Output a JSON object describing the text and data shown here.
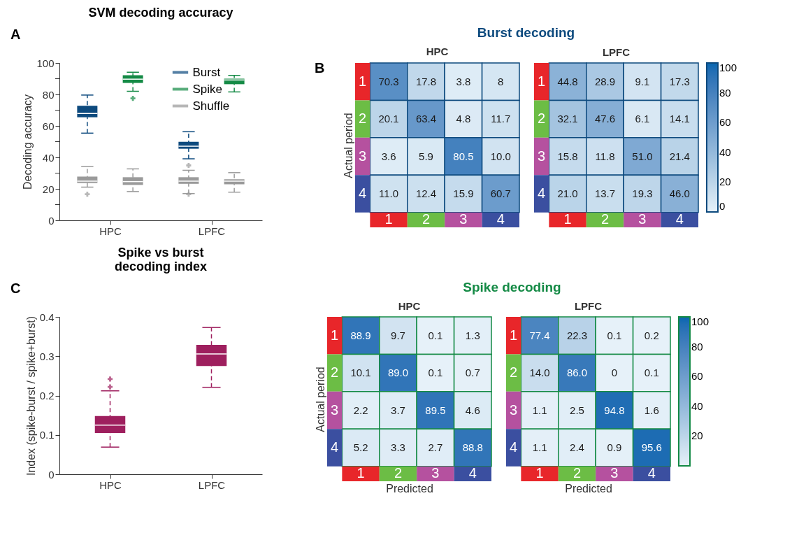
{
  "chart_data": [
    {
      "type": "box",
      "title": "SVM decoding accuracy",
      "ylabel": "Decoding accuracy",
      "categories": [
        "HPC",
        "LPFC"
      ],
      "annotations": [
        "A"
      ],
      "ylim": [
        0,
        100
      ],
      "yticks": [
        0,
        {
          "value": 10,
          "label": null
        },
        20,
        {
          "value": 30,
          "label": null
        },
        40,
        {
          "value": 50,
          "label": null
        },
        60,
        {
          "value": 70,
          "label": null
        },
        80,
        {
          "value": 90,
          "label": null
        },
        100
      ],
      "grid": false,
      "legend": "top right",
      "line_style": "dashed",
      "series": [
        {
          "name": "Burst",
          "color": "#0d4a7e",
          "boxes": [
            {
              "low": 55.4,
              "q1": 65.5,
              "median": 67.9,
              "q3": 72.8,
              "high": 79.6
            },
            {
              "low": 39.1,
              "q1": 45.5,
              "median": 47.1,
              "q3": 49.9,
              "high": 56.3
            }
          ]
        },
        {
          "name": "Spike",
          "color": "#148a45",
          "boxes": [
            {
              "low": 82.0,
              "q1": 87.3,
              "median": 89.7,
              "q3": 92.2,
              "high": 94.1,
              "outliers": [
                77.5
              ]
            },
            {
              "low": 81.6,
              "q1": 86.5,
              "median": 89.2,
              "q3": 90.0,
              "high": 92.1
            }
          ]
        },
        {
          "name": "Shuffle",
          "color": "#9a9a9a",
          "boxes": [
            {
              "low": 21.1,
              "q1": 23.7,
              "median": 24.9,
              "q3": 27.8,
              "high": 34.1,
              "outliers": [
                16.6
              ]
            },
            {
              "low": 17.0,
              "q1": 23.2,
              "median": 24.9,
              "q3": 27.4,
              "high": 31.8,
              "outliers": [
                34.9,
                16.6
              ]
            }
          ]
        },
        {
          "color": "#9a9a9a",
          "boxes": [
            {
              "low": 18.3,
              "q1": 22.5,
              "median": 24.6,
              "q3": 27.4,
              "high": 32.7
            },
            {
              "low": 17.9,
              "q1": 22.9,
              "median": 24.9,
              "q3": 26.1,
              "high": 30.3
            }
          ]
        }
      ]
    },
    {
      "type": "heatmap",
      "title": "Burst decoding",
      "subtitle": "HPC",
      "ylabel": "Actual period",
      "annotations": [
        "B"
      ],
      "color": "#0d4a7e",
      "categories": [
        "1",
        "2",
        "3",
        "4"
      ],
      "y_categories": [
        "1",
        "2",
        "3",
        "4"
      ],
      "colors": [
        "#e8262a",
        "#6cbd45",
        "#b5519f",
        "#3b4fa0"
      ],
      "cells": [
        [
          70.3,
          17.8,
          3.8,
          8
        ],
        [
          20.1,
          63.4,
          4.8,
          11.7
        ],
        [
          3.6,
          5.9,
          80.5,
          10.0
        ],
        [
          11.0,
          12.4,
          15.9,
          60.7
        ]
      ],
      "cell_labels": [
        [
          "70.3",
          "17.8",
          "3.8",
          "8"
        ],
        [
          "20.1",
          "63.4",
          "4.8",
          "11.7"
        ],
        [
          "3.6",
          "5.9",
          "80.5",
          "10.0"
        ],
        [
          "11.0",
          "12.4",
          "15.9",
          "60.7"
        ]
      ]
    },
    {
      "type": "heatmap",
      "subtitle": "LPFC",
      "color": "#0d4a7e",
      "categories": [
        "1",
        "2",
        "3",
        "4"
      ],
      "y_categories": [
        "1",
        "2",
        "3",
        "4"
      ],
      "colors": [
        "#e8262a",
        "#6cbd45",
        "#b5519f",
        "#3b4fa0"
      ],
      "cells": [
        [
          44.8,
          28.9,
          9.1,
          17.3
        ],
        [
          32.1,
          47.6,
          6.1,
          14.1
        ],
        [
          15.8,
          11.8,
          51.0,
          21.4
        ],
        [
          21.0,
          13.7,
          19.3,
          46.0
        ]
      ],
      "cell_labels": [
        [
          "44.8",
          "28.9",
          "9.1",
          "17.3"
        ],
        [
          "32.1",
          "47.6",
          "6.1",
          "14.1"
        ],
        [
          "15.8",
          "11.8",
          "51.0",
          "21.4"
        ],
        [
          "21.0",
          "13.7",
          "19.3",
          "46.0"
        ]
      ],
      "clim": [
        0,
        100
      ],
      "cticks": [
        0,
        20,
        40,
        60,
        80,
        100
      ]
    },
    {
      "type": "box",
      "title": "Spike vs burst\ndecoding index",
      "ylabel": "Index (spike-burst / spike+burst)",
      "categories": [
        "HPC",
        "LPFC"
      ],
      "annotations": [
        "C"
      ],
      "ylim": [
        0,
        0.4
      ],
      "yticks": [
        0,
        0.1,
        0.2,
        0.3,
        0.4
      ],
      "grid": false,
      "line_style": "dashed",
      "series": [
        {
          "color": "#9e1f5e",
          "boxes": [
            {
              "low": 0.069,
              "q1": 0.105,
              "median": 0.125,
              "q3": 0.148,
              "high": 0.212,
              "outliers": [
                0.242,
                0.222
              ]
            },
            {
              "low": 0.221,
              "q1": 0.275,
              "median": 0.306,
              "q3": 0.329,
              "high": 0.373
            }
          ]
        }
      ]
    },
    {
      "type": "heatmap",
      "title": "Spike decoding",
      "subtitle": "HPC",
      "ylabel": "Actual period",
      "xlabel": "Predicted",
      "color": "#148a45",
      "categories": [
        "1",
        "2",
        "3",
        "4"
      ],
      "y_categories": [
        "1",
        "2",
        "3",
        "4"
      ],
      "colors": [
        "#e8262a",
        "#6cbd45",
        "#b5519f",
        "#3b4fa0"
      ],
      "cells": [
        [
          88.9,
          9.7,
          0.1,
          1.3
        ],
        [
          10.1,
          89.0,
          0.1,
          0.7
        ],
        [
          2.2,
          3.7,
          89.5,
          4.6
        ],
        [
          5.2,
          3.3,
          2.7,
          88.8
        ]
      ],
      "cell_labels": [
        [
          "88.9",
          "9.7",
          "0.1",
          "1.3"
        ],
        [
          "10.1",
          "89.0",
          "0.1",
          "0.7"
        ],
        [
          "2.2",
          "3.7",
          "89.5",
          "4.6"
        ],
        [
          "5.2",
          "3.3",
          "2.7",
          "88.8"
        ]
      ]
    },
    {
      "type": "heatmap",
      "subtitle": "LPFC",
      "xlabel": "Predicted",
      "color": "#148a45",
      "categories": [
        "1",
        "2",
        "3",
        "4"
      ],
      "y_categories": [
        "1",
        "2",
        "3",
        "4"
      ],
      "colors": [
        "#e8262a",
        "#6cbd45",
        "#b5519f",
        "#3b4fa0"
      ],
      "cells": [
        [
          77.4,
          22.3,
          0.1,
          0.2
        ],
        [
          14.0,
          86.0,
          0,
          0.1
        ],
        [
          1.1,
          2.5,
          94.8,
          1.6
        ],
        [
          1.1,
          2.4,
          0.9,
          95.6
        ]
      ],
      "cell_labels": [
        [
          "77.4",
          "22.3",
          "0.1",
          "0.2"
        ],
        [
          "14.0",
          "86.0",
          "0",
          "0.1"
        ],
        [
          "1.1",
          "2.5",
          "94.8",
          "1.6"
        ],
        [
          "1.1",
          "2.4",
          "0.9",
          "95.6"
        ]
      ],
      "clim": [
        0,
        100
      ],
      "cticks": [
        20,
        40,
        60,
        80,
        100
      ]
    }
  ]
}
